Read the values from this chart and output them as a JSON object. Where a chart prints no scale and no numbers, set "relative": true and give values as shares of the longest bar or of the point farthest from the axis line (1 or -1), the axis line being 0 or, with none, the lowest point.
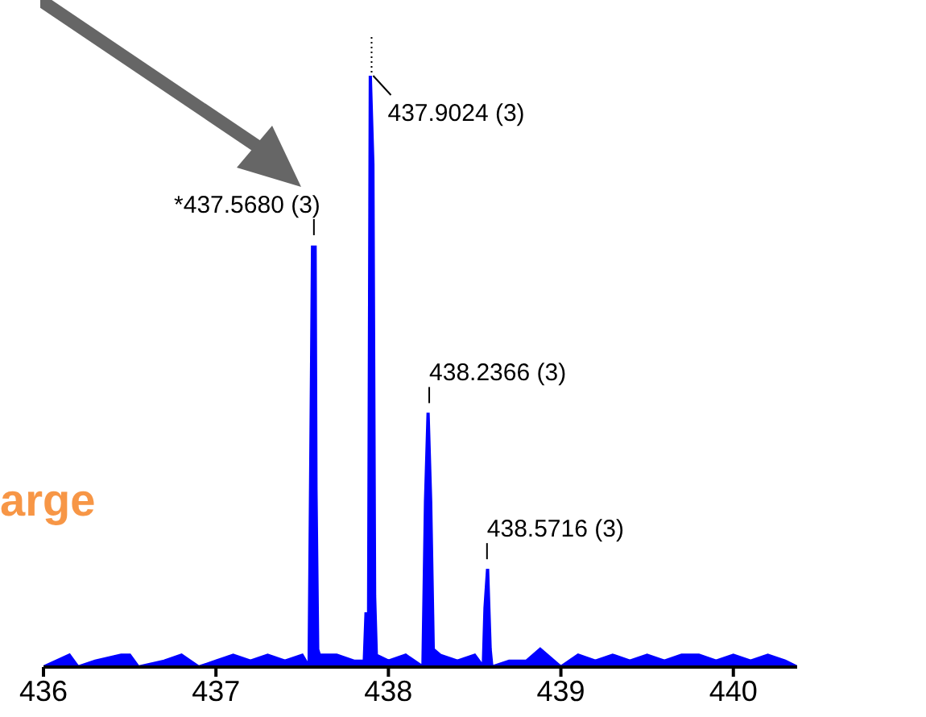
{
  "chart_data": {
    "type": "area",
    "relative": true,
    "xlim": [
      436,
      440.37
    ],
    "xticks": [
      {
        "value": 436,
        "label": "436"
      },
      437,
      438,
      439,
      440
    ],
    "series": [
      {
        "color": "#0000ff",
        "x": [
          436,
          436.15,
          436.2,
          436.3,
          436.45,
          436.5,
          436.55,
          436.7,
          436.8,
          436.9,
          437,
          437.1,
          437.2,
          437.3,
          437.4,
          437.5,
          437.54,
          437.55,
          437.56,
          437.575,
          437.58,
          437.59,
          437.6,
          437.7,
          437.8,
          437.86,
          437.87,
          437.885,
          437.895,
          437.91,
          437.92,
          437.93,
          438,
          438.1,
          438.2,
          438.215,
          438.23,
          438.245,
          438.26,
          438.3,
          438.4,
          438.5,
          438.55,
          438.56,
          438.575,
          438.59,
          438.6,
          438.7,
          438.8,
          438.88,
          438.92,
          439,
          439.1,
          439.2,
          439.3,
          439.4,
          439.5,
          439.6,
          439.7,
          439.8,
          439.9,
          440,
          440.1,
          440.2,
          440.3,
          440.37
        ],
        "values": [
          0,
          0.02,
          0,
          0.01,
          0.02,
          0.02,
          0,
          0.01,
          0.02,
          0,
          0.01,
          0.02,
          0.01,
          0.02,
          0.01,
          0.02,
          0,
          0.35,
          0.71,
          0.71,
          0.3,
          0.03,
          0.02,
          0.02,
          0.01,
          0.01,
          0.09,
          0.09,
          1.0,
          0.85,
          0.12,
          0.02,
          0.01,
          0.02,
          0,
          0.28,
          0.43,
          0.28,
          0.03,
          0.02,
          0.01,
          0.02,
          0,
          0.1,
          0.166,
          0.03,
          0,
          0.01,
          0.01,
          0.03,
          0.02,
          0,
          0.02,
          0.01,
          0.02,
          0.01,
          0.02,
          0.01,
          0.02,
          0.02,
          0.01,
          0.02,
          0.01,
          0.02,
          0.01,
          0
        ]
      }
    ],
    "annotations": [
      {
        "text": "*437.5680 (3)",
        "x": 437.568,
        "y": 0.714
      },
      {
        "text": "437.9024 (3)",
        "x": 437.9024,
        "y": 1.0
      },
      {
        "text": "438.2366 (3)",
        "x": 438.2366,
        "y": 0.43
      },
      {
        "text": "438.5716 (3)",
        "x": 438.5716,
        "y": 0.166
      },
      "arge"
    ]
  }
}
